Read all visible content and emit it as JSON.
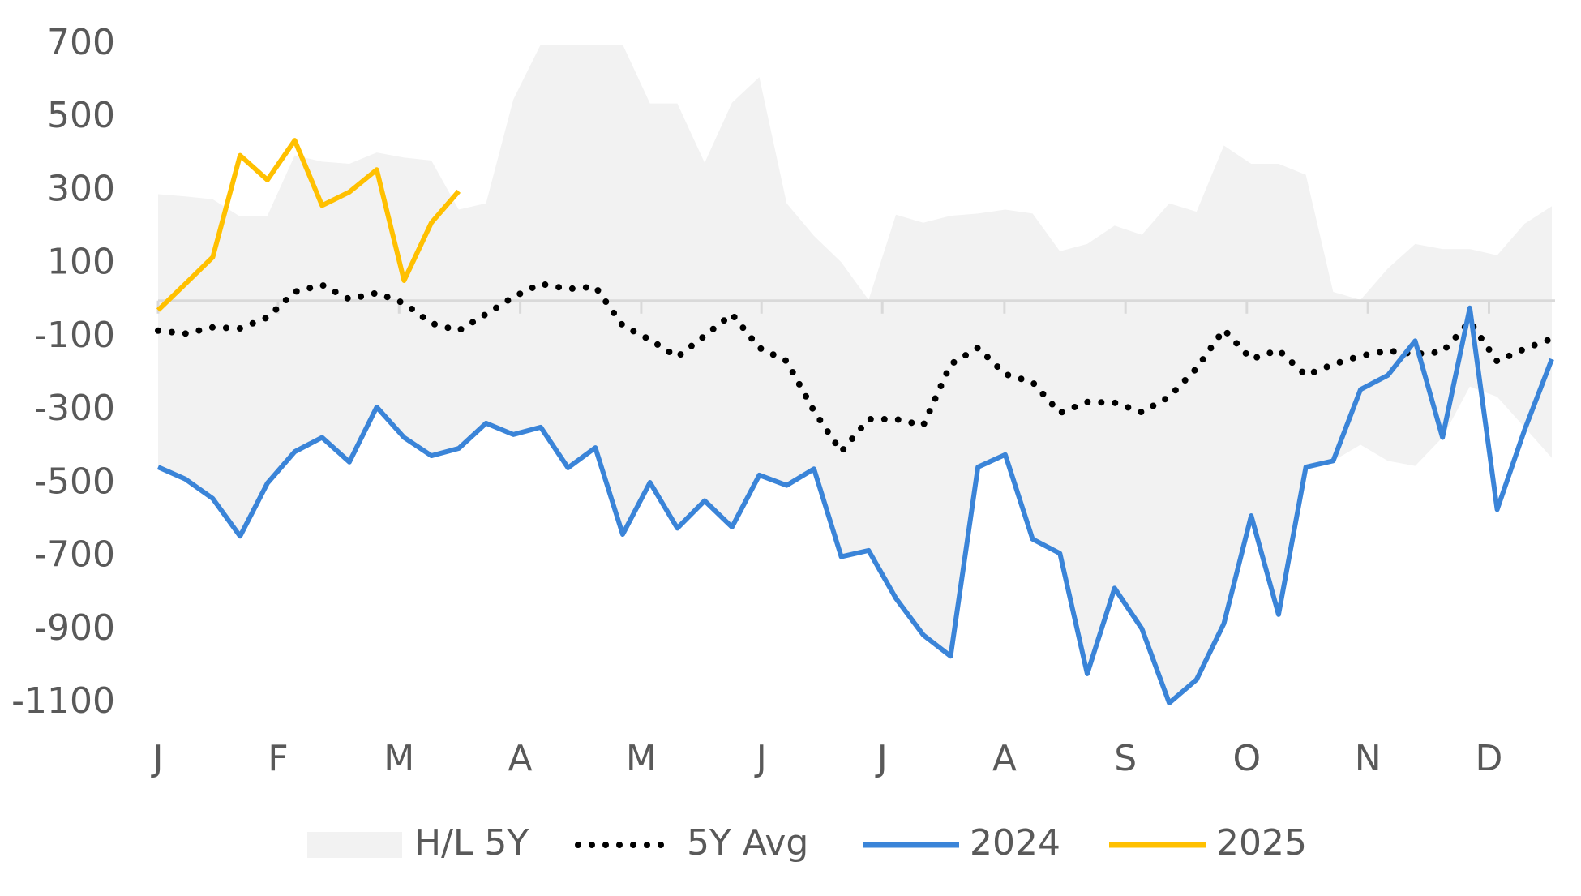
{
  "chart_data": {
    "type": "line",
    "x": [
      1,
      2,
      3,
      4,
      5,
      6,
      7,
      8,
      9,
      10,
      11,
      12,
      13,
      14,
      15,
      16,
      17,
      18,
      19,
      20,
      21,
      22,
      23,
      24,
      25,
      26,
      27,
      28,
      29,
      30,
      31,
      32,
      33,
      34,
      35,
      36,
      37,
      38,
      39,
      40,
      41,
      42,
      43,
      44,
      45,
      46,
      47,
      48,
      49,
      50,
      51,
      52
    ],
    "xlim": [
      1,
      52
    ],
    "xticks": [
      {
        "value": 1,
        "label": "J"
      },
      {
        "value": 5.39,
        "label": "F"
      },
      {
        "value": 9.82,
        "label": "M"
      },
      {
        "value": 14.25,
        "label": "A"
      },
      {
        "value": 18.68,
        "label": "M"
      },
      {
        "value": 23.08,
        "label": "J"
      },
      {
        "value": 27.5,
        "label": "J"
      },
      {
        "value": 31.97,
        "label": "A"
      },
      {
        "value": 36.4,
        "label": "S"
      },
      {
        "value": 40.84,
        "label": "O"
      },
      {
        "value": 45.27,
        "label": "N"
      },
      {
        "value": 49.7,
        "label": "D"
      }
    ],
    "ylim": [
      -1100,
      700
    ],
    "yticks": [
      700,
      500,
      300,
      100,
      -100,
      -300,
      -500,
      -700,
      -900,
      -1100
    ],
    "series": [
      {
        "name": "H/L 5Y",
        "color": "#f2f2f2",
        "style": "band",
        "high": [
          291,
          285,
          277,
          230,
          232,
          397,
          380,
          374,
          405,
          391,
          383,
          249,
          266,
          550,
          700,
          700,
          700,
          700,
          539,
          539,
          377,
          541,
          611,
          266,
          177,
          105,
          2,
          235,
          213,
          232,
          238,
          249,
          238,
          135,
          155,
          205,
          180,
          266,
          243,
          424,
          374,
          374,
          344,
          24,
          2,
          88,
          155,
          141,
          141,
          124,
          210,
          258
        ],
        "low": [
          -455,
          -488,
          -541,
          -644,
          -499,
          -413,
          -374,
          -441,
          -291,
          -374,
          -424,
          -404,
          -335,
          -366,
          -346,
          -457,
          -402,
          -639,
          -497,
          -622,
          -547,
          -619,
          -477,
          -505,
          -460,
          -700,
          -683,
          -814,
          -914,
          -972,
          -455,
          -421,
          -652,
          -691,
          -1020,
          -786,
          -897,
          -1100,
          -1036,
          -883,
          -588,
          -858,
          -455,
          -438,
          -394,
          -438,
          -452,
          -374,
          -235,
          -263,
          -346,
          -430
        ]
      },
      {
        "name": "5Y Avg",
        "color": "#000000",
        "style": "dotted",
        "values": [
          -82,
          -90,
          -73,
          -76,
          -46,
          24,
          43,
          4,
          21,
          -7,
          -62,
          -82,
          -37,
          10,
          46,
          32,
          38,
          -68,
          -107,
          -154,
          -96,
          -37,
          -129,
          -165,
          -302,
          -413,
          -324,
          -324,
          -341,
          -174,
          -129,
          -201,
          -223,
          -307,
          -277,
          -279,
          -305,
          -263,
          -185,
          -79,
          -160,
          -135,
          -204,
          -174,
          -151,
          -137,
          -146,
          -140,
          -57,
          -166,
          -132,
          -104
        ]
      },
      {
        "name": "2024",
        "color": "#3a84d8",
        "style": "solid",
        "values": [
          -455,
          -488,
          -541,
          -644,
          -499,
          -413,
          -374,
          -441,
          -291,
          -374,
          -424,
          -404,
          -335,
          -366,
          -346,
          -457,
          -402,
          -639,
          -497,
          -622,
          -547,
          -619,
          -477,
          -505,
          -460,
          -700,
          -683,
          -814,
          -914,
          -972,
          -455,
          -421,
          -652,
          -691,
          -1020,
          -786,
          -897,
          -1100,
          -1036,
          -883,
          -588,
          -858,
          -455,
          -438,
          -243,
          -204,
          -110,
          -374,
          -20,
          -571,
          -354,
          -160
        ]
      },
      {
        "name": "2025",
        "color": "#ffc000",
        "style": "solid",
        "values": [
          -26,
          46,
          119,
          397,
          330,
          438,
          260,
          297,
          358,
          55,
          213,
          299,
          null,
          null,
          null,
          null,
          null,
          null,
          null,
          null,
          null,
          null,
          null,
          null,
          null,
          null,
          null,
          null,
          null,
          null,
          null,
          null,
          null,
          null,
          null,
          null,
          null,
          null,
          null,
          null,
          null,
          null,
          null,
          null,
          null,
          null,
          null,
          null,
          null,
          null,
          null,
          null
        ]
      }
    ]
  }
}
